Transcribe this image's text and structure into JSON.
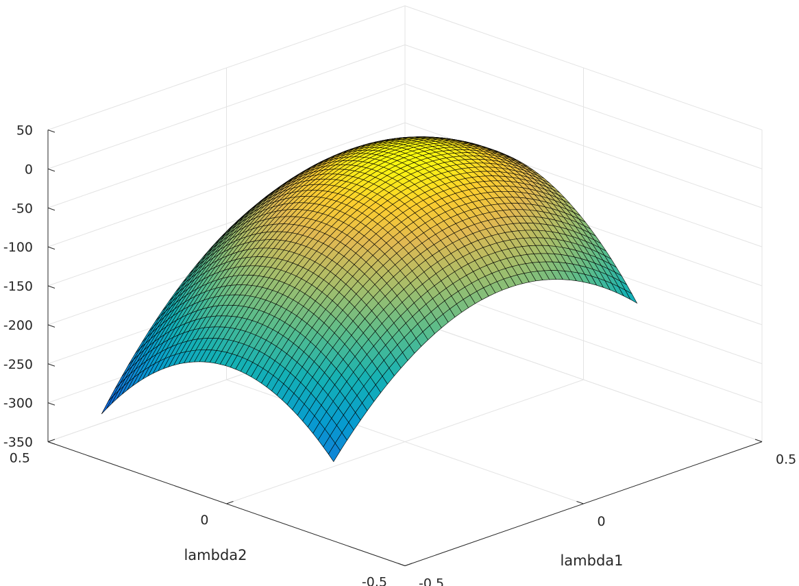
{
  "chart_data": {
    "type": "surface",
    "xlabel": "lambda1",
    "ylabel": "lambda2",
    "zlabel": "",
    "xlim": [
      -0.5,
      0.5
    ],
    "ylim": [
      -0.5,
      0.5
    ],
    "zlim": [
      -350,
      50
    ],
    "xticks": [
      -0.5,
      0,
      0.5
    ],
    "yticks": [
      -0.5,
      0,
      0.5
    ],
    "zticks": [
      50,
      0,
      -50,
      -100,
      -150,
      -200,
      -250,
      -300,
      -350
    ],
    "xtick_labels": [
      "-0.5",
      "0",
      "0.5"
    ],
    "ytick_labels": [
      "-0.5",
      "0",
      "0.5"
    ],
    "ztick_labels": [
      "50",
      "0",
      "-50",
      "-100",
      "-150",
      "-200",
      "-250",
      "-300",
      "-350"
    ],
    "grid": true,
    "colormap": "parula",
    "edge_color": "#000000",
    "surface_domain": {
      "lambda1": [
        -0.5,
        0.35
      ],
      "lambda2": [
        -0.3,
        0.35
      ]
    },
    "grid_size": [
      45,
      45
    ],
    "z_range_shown": [
      -340,
      5
    ],
    "z_peak": 5,
    "z_peak_at": [
      0.05,
      0.05
    ]
  }
}
